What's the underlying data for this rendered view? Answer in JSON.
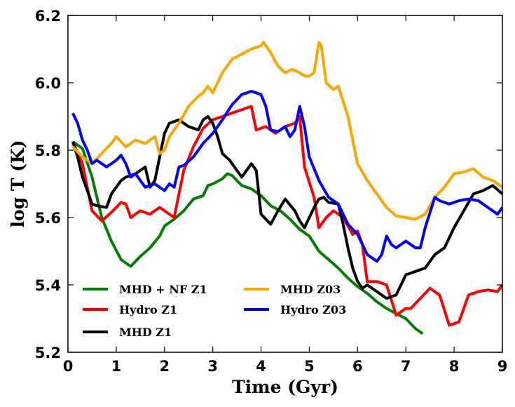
{
  "chart_data": {
    "type": "line",
    "title": "",
    "xlabel": "Time (Gyr)",
    "ylabel": "log T (K)",
    "xlim": [
      0,
      9
    ],
    "ylim": [
      5.2,
      6.2
    ],
    "xticks": [
      0,
      1,
      2,
      3,
      4,
      5,
      6,
      7,
      8,
      9
    ],
    "yticks": [
      5.2,
      5.4,
      5.6,
      5.8,
      6.0,
      6.2
    ],
    "xtick_labels": [
      "0",
      "1",
      "2",
      "3",
      "4",
      "5",
      "6",
      "7",
      "8",
      "9"
    ],
    "ytick_labels": [
      "5.2",
      "5.4",
      "5.6",
      "5.8",
      "6.0",
      "6.2"
    ],
    "grid": false,
    "legend_position": "lower-left",
    "series": [
      {
        "name": "MHD + NF Z1",
        "color": "#008000",
        "x": [
          0.1,
          0.3,
          0.5,
          0.7,
          0.9,
          1.1,
          1.3,
          1.5,
          1.7,
          1.9,
          2.0,
          2.2,
          2.4,
          2.6,
          2.8,
          2.9,
          3.0,
          3.2,
          3.3,
          3.4,
          3.6,
          3.8,
          4.0,
          4.2,
          4.4,
          4.6,
          4.8,
          5.0,
          5.2,
          5.4,
          5.6,
          5.8,
          6.0,
          6.2,
          6.4,
          6.6,
          6.8,
          7.0,
          7.2,
          7.35
        ],
        "values": [
          5.825,
          5.805,
          5.72,
          5.6,
          5.53,
          5.475,
          5.455,
          5.485,
          5.51,
          5.545,
          5.575,
          5.595,
          5.62,
          5.655,
          5.665,
          5.695,
          5.7,
          5.715,
          5.73,
          5.725,
          5.695,
          5.685,
          5.665,
          5.635,
          5.62,
          5.595,
          5.565,
          5.545,
          5.5,
          5.475,
          5.45,
          5.42,
          5.395,
          5.375,
          5.35,
          5.33,
          5.315,
          5.3,
          5.27,
          5.255
        ]
      },
      {
        "name": "Hydro Z1",
        "color": "#ff0000",
        "x": [
          0.1,
          0.3,
          0.5,
          0.7,
          0.9,
          1.1,
          1.2,
          1.3,
          1.5,
          1.7,
          1.9,
          2.0,
          2.2,
          2.4,
          2.6,
          2.8,
          3.0,
          3.2,
          3.4,
          3.6,
          3.8,
          3.9,
          4.1,
          4.3,
          4.5,
          4.7,
          4.8,
          4.9,
          5.1,
          5.2,
          5.35,
          5.5,
          5.7,
          5.9,
          6.0,
          6.1,
          6.2,
          6.4,
          6.6,
          6.8,
          7.0,
          7.1,
          7.3,
          7.5,
          7.7,
          7.9,
          8.1,
          8.3,
          8.5,
          8.7,
          8.9,
          9.0
        ],
        "values": [
          5.825,
          5.76,
          5.62,
          5.59,
          5.615,
          5.645,
          5.64,
          5.6,
          5.62,
          5.61,
          5.63,
          5.62,
          5.6,
          5.74,
          5.81,
          5.865,
          5.89,
          5.9,
          5.91,
          5.92,
          5.93,
          5.86,
          5.87,
          5.85,
          5.87,
          5.88,
          5.9,
          5.75,
          5.66,
          5.57,
          5.6,
          5.62,
          5.6,
          5.55,
          5.56,
          5.52,
          5.41,
          5.41,
          5.4,
          5.31,
          5.33,
          5.33,
          5.36,
          5.39,
          5.37,
          5.28,
          5.29,
          5.37,
          5.38,
          5.385,
          5.38,
          5.4
        ]
      },
      {
        "name": "MHD Z1",
        "color": "#000000",
        "x": [
          0.1,
          0.2,
          0.3,
          0.4,
          0.5,
          0.6,
          0.8,
          0.9,
          1.0,
          1.1,
          1.2,
          1.4,
          1.6,
          1.7,
          1.8,
          1.9,
          2.0,
          2.1,
          2.3,
          2.5,
          2.7,
          2.8,
          2.9,
          3.0,
          3.1,
          3.2,
          3.35,
          3.5,
          3.6,
          3.8,
          3.9,
          4.0,
          4.2,
          4.35,
          4.5,
          4.7,
          4.8,
          4.9,
          5.0,
          5.1,
          5.2,
          5.3,
          5.4,
          5.6,
          5.7,
          5.8,
          5.9,
          6.0,
          6.1,
          6.2,
          6.4,
          6.6,
          6.8,
          7.0,
          7.2,
          7.4,
          7.5,
          7.6,
          7.8,
          8.0,
          8.2,
          8.4,
          8.6,
          8.8,
          9.0
        ],
        "values": [
          5.825,
          5.78,
          5.72,
          5.68,
          5.64,
          5.635,
          5.63,
          5.67,
          5.69,
          5.71,
          5.72,
          5.73,
          5.75,
          5.69,
          5.71,
          5.78,
          5.85,
          5.88,
          5.89,
          5.87,
          5.86,
          5.89,
          5.9,
          5.88,
          5.84,
          5.79,
          5.77,
          5.74,
          5.72,
          5.76,
          5.74,
          5.61,
          5.58,
          5.62,
          5.655,
          5.62,
          5.59,
          5.57,
          5.6,
          5.63,
          5.655,
          5.66,
          5.645,
          5.64,
          5.58,
          5.51,
          5.45,
          5.41,
          5.39,
          5.4,
          5.38,
          5.36,
          5.37,
          5.43,
          5.44,
          5.45,
          5.47,
          5.49,
          5.51,
          5.57,
          5.62,
          5.67,
          5.68,
          5.695,
          5.67
        ]
      },
      {
        "name": "MHD Z03",
        "color": "#ffa500",
        "x": [
          0.1,
          0.3,
          0.5,
          0.7,
          0.9,
          1.0,
          1.2,
          1.4,
          1.6,
          1.8,
          1.9,
          2.0,
          2.1,
          2.3,
          2.5,
          2.7,
          2.8,
          2.9,
          3.0,
          3.2,
          3.4,
          3.6,
          3.8,
          4.0,
          4.05,
          4.2,
          4.35,
          4.5,
          4.65,
          4.8,
          4.9,
          5.0,
          5.1,
          5.2,
          5.25,
          5.35,
          5.5,
          5.6,
          5.8,
          6.0,
          6.2,
          6.4,
          6.6,
          6.8,
          7.0,
          7.2,
          7.4,
          7.6,
          7.8,
          8.0,
          8.2,
          8.4,
          8.6,
          8.8,
          9.0
        ],
        "values": [
          5.81,
          5.78,
          5.76,
          5.79,
          5.82,
          5.84,
          5.81,
          5.83,
          5.82,
          5.84,
          5.79,
          5.8,
          5.84,
          5.88,
          5.93,
          5.96,
          5.97,
          5.99,
          5.97,
          6.03,
          6.07,
          6.085,
          6.1,
          6.11,
          6.12,
          6.09,
          6.05,
          6.03,
          6.04,
          6.03,
          6.02,
          6.02,
          6.03,
          6.12,
          6.11,
          6.0,
          5.98,
          5.99,
          5.9,
          5.76,
          5.71,
          5.67,
          5.63,
          5.605,
          5.6,
          5.595,
          5.61,
          5.66,
          5.69,
          5.73,
          5.735,
          5.745,
          5.72,
          5.71,
          5.69
        ]
      },
      {
        "name": "Hydro Z03",
        "color": "#0000ff",
        "x": [
          0.1,
          0.2,
          0.3,
          0.4,
          0.5,
          0.6,
          0.7,
          0.8,
          1.0,
          1.1,
          1.2,
          1.3,
          1.4,
          1.6,
          1.8,
          2.0,
          2.1,
          2.2,
          2.3,
          2.4,
          2.6,
          2.8,
          3.0,
          3.2,
          3.4,
          3.6,
          3.8,
          3.9,
          4.0,
          4.1,
          4.2,
          4.35,
          4.5,
          4.6,
          4.7,
          4.8,
          4.9,
          5.0,
          5.2,
          5.4,
          5.6,
          5.8,
          6.0,
          6.2,
          6.4,
          6.5,
          6.6,
          6.7,
          6.8,
          7.0,
          7.2,
          7.3,
          7.4,
          7.6,
          7.7,
          7.9,
          8.1,
          8.3,
          8.5,
          8.7,
          8.9,
          9.0
        ],
        "values": [
          5.91,
          5.88,
          5.83,
          5.8,
          5.76,
          5.77,
          5.76,
          5.75,
          5.77,
          5.785,
          5.76,
          5.72,
          5.73,
          5.69,
          5.7,
          5.68,
          5.7,
          5.69,
          5.75,
          5.755,
          5.78,
          5.82,
          5.85,
          5.89,
          5.935,
          5.965,
          5.975,
          5.97,
          5.965,
          5.93,
          5.86,
          5.855,
          5.87,
          5.84,
          5.86,
          5.93,
          5.87,
          5.78,
          5.71,
          5.66,
          5.64,
          5.58,
          5.55,
          5.49,
          5.47,
          5.49,
          5.545,
          5.52,
          5.51,
          5.53,
          5.51,
          5.51,
          5.57,
          5.66,
          5.65,
          5.64,
          5.65,
          5.655,
          5.65,
          5.63,
          5.61,
          5.63
        ]
      }
    ]
  }
}
